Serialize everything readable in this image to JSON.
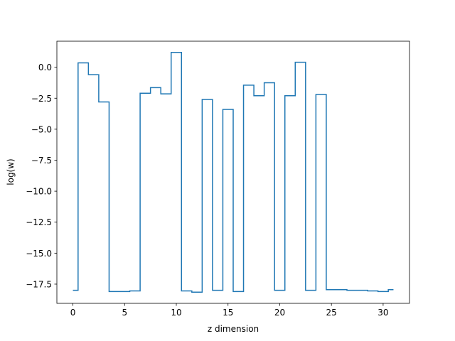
{
  "chart_data": {
    "type": "line",
    "step": "mid",
    "xlabel": "z dimension",
    "ylabel": "log(w)",
    "xlim": [
      -1.55,
      32.55
    ],
    "ylim": [
      -19.05,
      2.1
    ],
    "xticks": [
      0,
      5,
      10,
      15,
      20,
      25,
      30
    ],
    "xtick_labels": [
      "0",
      "5",
      "10",
      "15",
      "20",
      "25",
      "30"
    ],
    "yticks": [
      0.0,
      -2.5,
      -5.0,
      -7.5,
      -10.0,
      -12.5,
      -15.0,
      -17.5
    ],
    "ytick_labels": [
      "0.0",
      "−2.5",
      "−5.0",
      "−7.5",
      "−10.0",
      "−12.5",
      "−15.0",
      "−17.5"
    ],
    "series": [
      {
        "color": "#1f77b4",
        "x": [
          0,
          1,
          2,
          3,
          4,
          5,
          6,
          7,
          8,
          9,
          10,
          11,
          12,
          13,
          14,
          15,
          16,
          17,
          18,
          19,
          20,
          21,
          22,
          23,
          24,
          25,
          26,
          27,
          28,
          29,
          30,
          31
        ],
        "y": [
          -18.0,
          0.35,
          -0.6,
          -2.8,
          -18.1,
          -18.1,
          -18.05,
          -2.1,
          -1.65,
          -2.15,
          1.2,
          -18.05,
          -18.15,
          -2.6,
          -18.0,
          -3.4,
          -18.1,
          -1.45,
          -2.3,
          -1.25,
          -18.0,
          -2.3,
          0.4,
          -18.0,
          -2.2,
          -17.95,
          -17.95,
          -18.0,
          -18.0,
          -18.05,
          -18.1,
          -17.95
        ]
      }
    ]
  }
}
